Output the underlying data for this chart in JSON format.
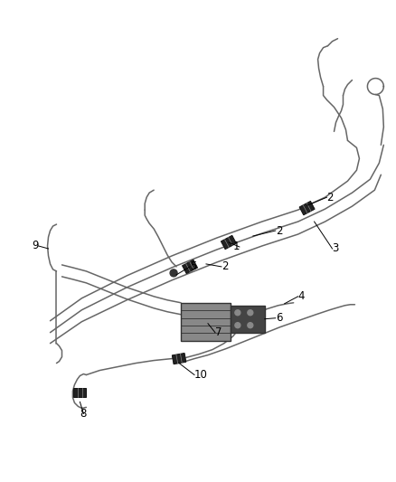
{
  "bg_color": "#ffffff",
  "line_color": "#666666",
  "dark_color": "#333333",
  "fig_width": 4.38,
  "fig_height": 5.33,
  "dpi": 100,
  "line_width": 1.1,
  "clamp_color": "#222222",
  "block_color": "#444444"
}
